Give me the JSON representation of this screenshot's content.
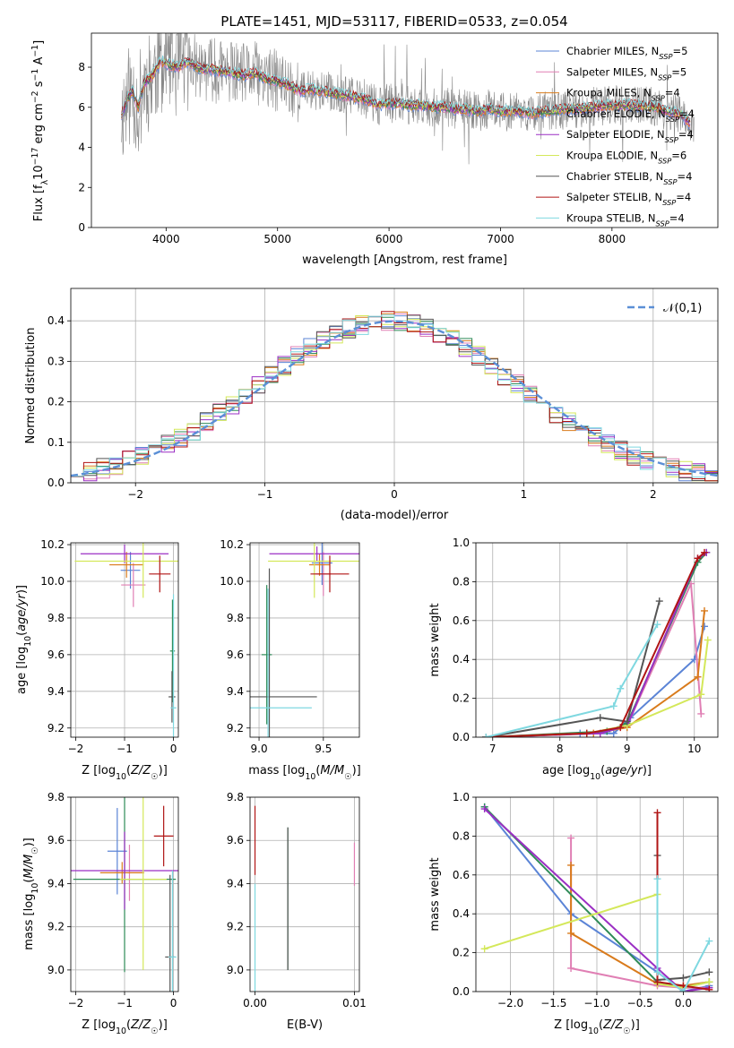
{
  "figure_title": "PLATE=1451, MJD=53117, FIBERID=0533, z=0.054",
  "models": [
    {
      "name": "Chabrier MILES",
      "nssp": "5",
      "color": "#5b84d6"
    },
    {
      "name": "Salpeter MILES",
      "nssp": "5",
      "color": "#e07fb4"
    },
    {
      "name": "Kroupa MILES",
      "nssp": "4",
      "color": "#d97b1c"
    },
    {
      "name": "Chabrier ELODIE",
      "nssp": "4",
      "color": "#2e8b57"
    },
    {
      "name": "Salpeter ELODIE",
      "nssp": "4",
      "color": "#9b2fc4"
    },
    {
      "name": "Kroupa ELODIE",
      "nssp": "6",
      "color": "#d4e85a"
    },
    {
      "name": "Chabrier STELIB",
      "nssp": "4",
      "color": "#555555"
    },
    {
      "name": "Salpeter STELIB",
      "nssp": "4",
      "color": "#b01515"
    },
    {
      "name": "Kroupa STELIB",
      "nssp": "4",
      "color": "#7fd8e0"
    }
  ],
  "chart_data": [
    {
      "id": "spectrum",
      "type": "line",
      "xlabel": "wavelength [Angstrom, rest frame]",
      "ylabel": "Flux [f_λ 10^-17 erg cm^-2 s^-1 A^-1]",
      "xlim": [
        3330,
        8950
      ],
      "ylim": [
        0,
        9.7
      ],
      "xticks": [
        4000,
        5000,
        6000,
        7000,
        8000
      ],
      "yticks": [
        0,
        2,
        4,
        6,
        8
      ],
      "legend": "upper-right",
      "model_continuum": [
        [
          3600,
          5.6
        ],
        [
          3650,
          6.4
        ],
        [
          3700,
          6.8
        ],
        [
          3750,
          6.0
        ],
        [
          3800,
          7.2
        ],
        [
          3850,
          7.4
        ],
        [
          3900,
          7.8
        ],
        [
          3950,
          8.3
        ],
        [
          4000,
          8.2
        ],
        [
          4100,
          8.0
        ],
        [
          4200,
          8.3
        ],
        [
          4300,
          7.9
        ],
        [
          4400,
          7.9
        ],
        [
          4500,
          7.8
        ],
        [
          4600,
          7.7
        ],
        [
          4700,
          7.6
        ],
        [
          4800,
          7.7
        ],
        [
          4900,
          7.4
        ],
        [
          5000,
          7.3
        ],
        [
          5100,
          7.1
        ],
        [
          5200,
          6.8
        ],
        [
          5300,
          6.9
        ],
        [
          5400,
          6.8
        ],
        [
          5500,
          6.7
        ],
        [
          5600,
          6.6
        ],
        [
          5700,
          6.5
        ],
        [
          5800,
          6.4
        ],
        [
          5900,
          6.1
        ],
        [
          6000,
          6.2
        ],
        [
          6100,
          6.2
        ],
        [
          6200,
          6.1
        ],
        [
          6300,
          6.1
        ],
        [
          6400,
          6.0
        ],
        [
          6500,
          6.0
        ],
        [
          6600,
          5.9
        ],
        [
          6700,
          5.9
        ],
        [
          6800,
          5.8
        ],
        [
          6900,
          5.9
        ],
        [
          7000,
          5.8
        ],
        [
          7100,
          5.8
        ],
        [
          7200,
          5.8
        ],
        [
          7300,
          5.7
        ],
        [
          7400,
          5.8
        ],
        [
          7600,
          5.9
        ],
        [
          7800,
          6.0
        ],
        [
          8000,
          6.1
        ],
        [
          8200,
          6.1
        ],
        [
          8400,
          6.0
        ],
        [
          8500,
          5.8
        ],
        [
          8600,
          5.7
        ],
        [
          8700,
          5.2
        ]
      ],
      "data_range": [
        3600,
        8740
      ]
    },
    {
      "id": "residuals",
      "type": "line",
      "xlabel": "(data-model)/error",
      "ylabel": "Normed distribution",
      "xlim": [
        -2.5,
        2.5
      ],
      "ylim": [
        0,
        0.48
      ],
      "xticks": [
        -2,
        -1,
        0,
        1,
        2
      ],
      "yticks": [
        0.0,
        0.1,
        0.2,
        0.3,
        0.4
      ],
      "legend": "upper-right",
      "legend_label": "𝒩(0,1)",
      "reference_sigma": 1.0,
      "reference_mean": 0.0
    },
    {
      "id": "age-vs-z",
      "type": "scatter",
      "xlabel": "Z [log10(Z/Z☉)]",
      "ylabel": "age  [log10(age/yr)]",
      "xlim": [
        -2.1,
        0.1
      ],
      "ylim": [
        9.15,
        10.21
      ],
      "xticks": [
        -2,
        -1,
        0
      ],
      "yticks": [
        9.2,
        9.4,
        9.6,
        9.8,
        10.0,
        10.2
      ],
      "points": [
        {
          "model": 0,
          "x": -0.88,
          "y": 10.06,
          "xerr": 0.2,
          "yerr": 0.1
        },
        {
          "model": 1,
          "x": -0.82,
          "y": 9.98,
          "xerr": 0.25,
          "yerr": 0.12
        },
        {
          "model": 2,
          "x": -0.96,
          "y": 10.09,
          "xerr": 0.35,
          "yerr": 0.07
        },
        {
          "model": 3,
          "x": -0.02,
          "y": 9.62,
          "xerr": 0.05,
          "yerr": 0.28
        },
        {
          "model": 4,
          "x": -1.0,
          "y": 10.15,
          "xerr": 0.9,
          "yerr": 0.05
        },
        {
          "model": 5,
          "x": -0.62,
          "y": 10.11,
          "xerr": 1.4,
          "yerr": 0.2
        },
        {
          "model": 6,
          "x": -0.03,
          "y": 9.37,
          "xerr": 0.07,
          "yerr": 0.14
        },
        {
          "model": 7,
          "x": -0.28,
          "y": 10.04,
          "xerr": 0.22,
          "yerr": 0.1
        },
        {
          "model": 8,
          "x": 0.0,
          "y": 9.31,
          "xerr": 0.06,
          "yerr": 0.62
        }
      ]
    },
    {
      "id": "age-vs-mass",
      "type": "scatter",
      "xlabel": "mass [log10(M/M☉)]",
      "ylabel": "",
      "xlim": [
        8.93,
        9.78
      ],
      "ylim": [
        9.15,
        10.21
      ],
      "xticks": [
        9.0,
        9.5
      ],
      "yticks": [
        9.2,
        9.4,
        9.6,
        9.8,
        10.0,
        10.2
      ],
      "points": [
        {
          "model": 0,
          "x": 9.49,
          "y": 10.1,
          "xerr": 0.08,
          "yerr": 0.12
        },
        {
          "model": 1,
          "x": 9.5,
          "y": 10.04,
          "xerr": 0.06,
          "yerr": 0.12
        },
        {
          "model": 2,
          "x": 9.47,
          "y": 10.09,
          "xerr": 0.08,
          "yerr": 0.06
        },
        {
          "model": 3,
          "x": 9.06,
          "y": 9.6,
          "xerr": 0.04,
          "yerr": 0.38
        },
        {
          "model": 4,
          "x": 9.45,
          "y": 10.15,
          "xerr": 0.37,
          "yerr": 0.04
        },
        {
          "model": 5,
          "x": 9.43,
          "y": 10.11,
          "xerr": 0.36,
          "yerr": 0.2
        },
        {
          "model": 6,
          "x": 9.08,
          "y": 9.37,
          "xerr": 0.37,
          "yerr": 0.7
        },
        {
          "model": 7,
          "x": 9.55,
          "y": 10.04,
          "xerr": 0.15,
          "yerr": 0.1
        },
        {
          "model": 8,
          "x": 9.07,
          "y": 9.31,
          "xerr": 0.34,
          "yerr": 0.65
        }
      ]
    },
    {
      "id": "massweight-vs-age",
      "type": "line",
      "xlabel": "age  [log10(age/yr)]",
      "ylabel": "mass weight",
      "xlim": [
        6.75,
        10.35
      ],
      "ylim": [
        0,
        1.0
      ],
      "xticks": [
        7,
        8,
        9,
        10
      ],
      "yticks": [
        0.0,
        0.2,
        0.4,
        0.6,
        0.8,
        1.0
      ],
      "series": [
        {
          "model": 0,
          "points": [
            [
              6.9,
              0.0
            ],
            [
              8.3,
              0.02
            ],
            [
              8.8,
              0.02
            ],
            [
              9.05,
              0.1
            ],
            [
              10.0,
              0.4
            ],
            [
              10.15,
              0.57
            ]
          ]
        },
        {
          "model": 1,
          "points": [
            [
              6.9,
              0.0
            ],
            [
              8.6,
              0.02
            ],
            [
              9.0,
              0.06
            ],
            [
              9.95,
              0.79
            ],
            [
              10.1,
              0.12
            ]
          ]
        },
        {
          "model": 2,
          "points": [
            [
              6.9,
              0.0
            ],
            [
              8.5,
              0.02
            ],
            [
              9.0,
              0.05
            ],
            [
              10.05,
              0.31
            ],
            [
              10.15,
              0.65
            ]
          ]
        },
        {
          "model": 3,
          "points": [
            [
              6.9,
              0.0
            ],
            [
              8.7,
              0.03
            ],
            [
              9.0,
              0.07
            ],
            [
              10.05,
              0.9
            ],
            [
              10.18,
              0.95
            ]
          ]
        },
        {
          "model": 4,
          "points": [
            [
              6.9,
              0.0
            ],
            [
              8.6,
              0.02
            ],
            [
              9.0,
              0.06
            ],
            [
              10.05,
              0.92
            ],
            [
              10.18,
              0.95
            ]
          ]
        },
        {
          "model": 5,
          "points": [
            [
              6.9,
              0.0
            ],
            [
              8.4,
              0.02
            ],
            [
              9.0,
              0.06
            ],
            [
              10.1,
              0.22
            ],
            [
              10.2,
              0.5
            ]
          ]
        },
        {
          "model": 6,
          "points": [
            [
              6.9,
              0.0
            ],
            [
              8.6,
              0.1
            ],
            [
              9.0,
              0.08
            ],
            [
              9.48,
              0.7
            ]
          ]
        },
        {
          "model": 7,
          "points": [
            [
              6.9,
              0.0
            ],
            [
              8.4,
              0.02
            ],
            [
              8.9,
              0.05
            ],
            [
              10.05,
              0.92
            ],
            [
              10.15,
              0.95
            ]
          ]
        },
        {
          "model": 8,
          "points": [
            [
              6.9,
              0.0
            ],
            [
              8.8,
              0.16
            ],
            [
              8.9,
              0.25
            ],
            [
              9.45,
              0.58
            ]
          ]
        }
      ]
    },
    {
      "id": "mass-vs-z",
      "type": "scatter",
      "xlabel": "Z [log10(Z/Z☉)]",
      "ylabel": "mass [log10(M/M☉)]",
      "xlim": [
        -2.1,
        0.1
      ],
      "ylim": [
        8.9,
        9.8
      ],
      "xticks": [
        -2,
        -1,
        0
      ],
      "yticks": [
        9.0,
        9.2,
        9.4,
        9.6,
        9.8
      ],
      "points": [
        {
          "model": 0,
          "x": -1.15,
          "y": 9.55,
          "xerr": 0.2,
          "yerr": 0.2
        },
        {
          "model": 1,
          "x": -0.9,
          "y": 9.45,
          "xerr": 0.3,
          "yerr": 0.13
        },
        {
          "model": 2,
          "x": -1.05,
          "y": 9.45,
          "xerr": 0.45,
          "yerr": 0.05
        },
        {
          "model": 3,
          "x": -1.0,
          "y": 9.42,
          "xerr": 1.05,
          "yerr": 0.43
        },
        {
          "model": 4,
          "x": -1.0,
          "y": 9.46,
          "xerr": 1.1,
          "yerr": 0.18
        },
        {
          "model": 5,
          "x": -0.62,
          "y": 9.42,
          "xerr": 0.48,
          "yerr": 0.42
        },
        {
          "model": 6,
          "x": -0.07,
          "y": 9.06,
          "xerr": 0.1,
          "yerr": 0.38
        },
        {
          "model": 7,
          "x": -0.2,
          "y": 9.62,
          "xerr": 0.2,
          "yerr": 0.14
        },
        {
          "model": 8,
          "x": -0.02,
          "y": 9.06,
          "xerr": 0.08,
          "yerr": 0.4
        }
      ]
    },
    {
      "id": "mass-vs-ebv",
      "type": "scatter",
      "xlabel": "E(B-V)",
      "ylabel": "",
      "xlim": [
        -0.0005,
        0.0105
      ],
      "ylim": [
        8.9,
        9.8
      ],
      "xticks": [
        0.0,
        0.01
      ],
      "xtick_labels": [
        "0.00",
        "0.01"
      ],
      "yticks": [
        9.0,
        9.2,
        9.4,
        9.6,
        9.8
      ],
      "points": [
        {
          "model": 7,
          "x": 0.0,
          "y": 9.6,
          "xerr": 0,
          "yerr": 0.16
        },
        {
          "model": 8,
          "x": 0.0,
          "y": 9.1,
          "xerr": 0,
          "yerr": 0.3
        },
        {
          "model": 3,
          "x": 0.0033,
          "y": 9.33,
          "xerr": 0,
          "yerr": 0.33
        },
        {
          "model": 6,
          "x": 0.0033,
          "y": 9.33,
          "xerr": 0,
          "yerr": 0.33
        },
        {
          "model": 1,
          "x": 0.01,
          "y": 9.49,
          "xerr": 0,
          "yerr": 0.1
        }
      ]
    },
    {
      "id": "massweight-vs-z",
      "type": "line",
      "xlabel": "Z [log10(Z/Z☉)]",
      "ylabel": "mass weight",
      "xlim": [
        -2.4,
        0.4
      ],
      "ylim": [
        0,
        1.0
      ],
      "xticks": [
        -2.0,
        -1.5,
        -1.0,
        -0.5,
        0.0
      ],
      "xtick_labels": [
        "−2.0",
        "−1.5",
        "−1.0",
        "−0.5",
        "0.0"
      ],
      "yticks": [
        0.0,
        0.2,
        0.4,
        0.6,
        0.8,
        1.0
      ],
      "series": [
        {
          "model": 0,
          "points": [
            [
              -2.3,
              0.95
            ],
            [
              -1.3,
              0.4
            ],
            [
              -0.3,
              0.1
            ],
            [
              0.0,
              0.0
            ],
            [
              0.3,
              0.03
            ]
          ]
        },
        {
          "model": 1,
          "points": [
            [
              -1.3,
              0.79
            ],
            [
              -1.3,
              0.12
            ],
            [
              -0.3,
              0.03
            ],
            [
              0.0,
              0.02
            ],
            [
              0.3,
              0.02
            ]
          ]
        },
        {
          "model": 2,
          "points": [
            [
              -1.3,
              0.65
            ],
            [
              -1.3,
              0.3
            ],
            [
              -0.3,
              0.04
            ],
            [
              0.0,
              0.03
            ],
            [
              0.3,
              0.05
            ]
          ]
        },
        {
          "model": 3,
          "points": [
            [
              -2.3,
              0.95
            ],
            [
              -0.3,
              0.05
            ],
            [
              0.0,
              0.02
            ],
            [
              0.3,
              0.05
            ]
          ]
        },
        {
          "model": 4,
          "points": [
            [
              -2.3,
              0.94
            ],
            [
              -0.3,
              0.12
            ],
            [
              0.0,
              0.0
            ],
            [
              0.3,
              0.02
            ]
          ]
        },
        {
          "model": 5,
          "points": [
            [
              -2.3,
              0.22
            ],
            [
              -0.3,
              0.5
            ],
            [
              -0.3,
              0.04
            ],
            [
              0.0,
              0.02
            ],
            [
              0.3,
              0.05
            ]
          ]
        },
        {
          "model": 6,
          "points": [
            [
              -0.3,
              0.7
            ],
            [
              -0.3,
              0.06
            ],
            [
              0.0,
              0.07
            ],
            [
              0.3,
              0.1
            ]
          ]
        },
        {
          "model": 7,
          "points": [
            [
              -0.3,
              0.92
            ],
            [
              -0.3,
              0.05
            ],
            [
              0.0,
              0.03
            ],
            [
              0.3,
              0.01
            ]
          ]
        },
        {
          "model": 8,
          "points": [
            [
              -0.3,
              0.58
            ],
            [
              -0.3,
              0.1
            ],
            [
              0.0,
              0.0
            ],
            [
              0.3,
              0.26
            ]
          ]
        }
      ]
    }
  ]
}
